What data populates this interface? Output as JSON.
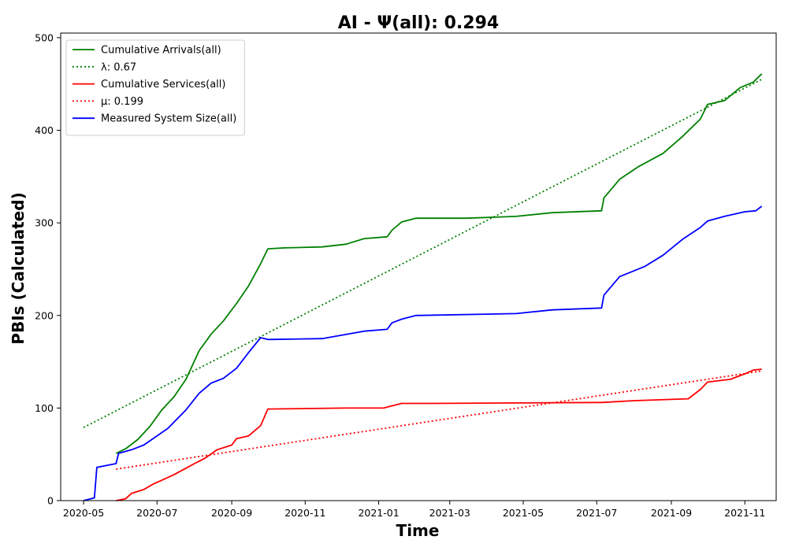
{
  "chart_data": {
    "type": "line",
    "title": "AI -  Ψ(all): 0.294",
    "xlabel": "Time",
    "ylabel": "PBIs (Calculated)",
    "xlim": [
      "2020-04-12",
      "2021-11-27"
    ],
    "ylim": [
      0,
      505
    ],
    "x_ticks": [
      "2020-05",
      "2020-07",
      "2020-09",
      "2020-11",
      "2021-01",
      "2021-03",
      "2021-05",
      "2021-07",
      "2021-09",
      "2021-11"
    ],
    "y_ticks": [
      0,
      100,
      200,
      300,
      400,
      500
    ],
    "grid": false,
    "legend_position": "top-left",
    "series": [
      {
        "name": "Cumulative Arrivals(all)",
        "color": "#008000",
        "style": "solid",
        "points": [
          [
            "2020-05-28",
            51
          ],
          [
            "2020-06-05",
            56
          ],
          [
            "2020-06-15",
            66
          ],
          [
            "2020-06-25",
            80
          ],
          [
            "2020-07-05",
            98
          ],
          [
            "2020-07-15",
            112
          ],
          [
            "2020-07-25",
            131
          ],
          [
            "2020-08-05",
            162
          ],
          [
            "2020-08-15",
            180
          ],
          [
            "2020-08-25",
            194
          ],
          [
            "2020-09-05",
            213
          ],
          [
            "2020-09-15",
            232
          ],
          [
            "2020-09-25",
            256
          ],
          [
            "2020-10-01",
            272
          ],
          [
            "2020-10-15",
            273
          ],
          [
            "2020-11-15",
            274
          ],
          [
            "2020-12-05",
            277
          ],
          [
            "2020-12-20",
            283
          ],
          [
            "2021-01-08",
            285
          ],
          [
            "2021-01-12",
            292
          ],
          [
            "2021-01-20",
            301
          ],
          [
            "2021-02-01",
            305
          ],
          [
            "2021-03-15",
            305
          ],
          [
            "2021-04-25",
            307
          ],
          [
            "2021-05-25",
            311
          ],
          [
            "2021-07-05",
            313
          ],
          [
            "2021-07-07",
            327
          ],
          [
            "2021-07-20",
            347
          ],
          [
            "2021-08-05",
            361
          ],
          [
            "2021-08-25",
            375
          ],
          [
            "2021-09-10",
            393
          ],
          [
            "2021-09-25",
            412
          ],
          [
            "2021-10-01",
            428
          ],
          [
            "2021-10-15",
            432
          ],
          [
            "2021-10-28",
            446
          ],
          [
            "2021-11-08",
            452
          ],
          [
            "2021-11-15",
            461
          ]
        ]
      },
      {
        "name": "λ: 0.67",
        "color": "#008000",
        "style": "dotted",
        "points": [
          [
            "2020-05-01",
            79
          ],
          [
            "2021-11-15",
            455
          ]
        ]
      },
      {
        "name": "Cumulative Services(all)",
        "color": "#ff0000",
        "style": "solid",
        "points": [
          [
            "2020-05-28",
            0
          ],
          [
            "2020-06-05",
            2
          ],
          [
            "2020-06-10",
            8
          ],
          [
            "2020-06-20",
            12
          ],
          [
            "2020-06-28",
            18
          ],
          [
            "2020-07-05",
            22
          ],
          [
            "2020-07-15",
            28
          ],
          [
            "2020-07-25",
            35
          ],
          [
            "2020-08-01",
            40
          ],
          [
            "2020-08-10",
            46
          ],
          [
            "2020-08-20",
            55
          ],
          [
            "2020-09-01",
            60
          ],
          [
            "2020-09-05",
            67
          ],
          [
            "2020-09-15",
            70
          ],
          [
            "2020-09-25",
            81
          ],
          [
            "2020-10-01",
            99
          ],
          [
            "2020-12-05",
            100
          ],
          [
            "2021-01-05",
            100
          ],
          [
            "2021-01-20",
            105
          ],
          [
            "2021-02-15",
            105
          ],
          [
            "2021-07-05",
            106
          ],
          [
            "2021-08-01",
            108
          ],
          [
            "2021-09-15",
            110
          ],
          [
            "2021-09-25",
            120
          ],
          [
            "2021-10-01",
            128
          ],
          [
            "2021-10-20",
            131
          ],
          [
            "2021-11-01",
            137
          ],
          [
            "2021-11-08",
            141
          ],
          [
            "2021-11-15",
            142
          ]
        ]
      },
      {
        "name": "μ: 0.199",
        "color": "#ff0000",
        "style": "dotted",
        "points": [
          [
            "2020-05-28",
            34
          ],
          [
            "2021-11-15",
            140
          ]
        ]
      },
      {
        "name": "Measured System Size(all)",
        "color": "#0000ff",
        "style": "solid",
        "points": [
          [
            "2020-05-01",
            0
          ],
          [
            "2020-05-10",
            3
          ],
          [
            "2020-05-12",
            36
          ],
          [
            "2020-05-28",
            40
          ],
          [
            "2020-05-30",
            51
          ],
          [
            "2020-06-10",
            55
          ],
          [
            "2020-06-20",
            60
          ],
          [
            "2020-07-01",
            70
          ],
          [
            "2020-07-10",
            78
          ],
          [
            "2020-07-25",
            98
          ],
          [
            "2020-08-05",
            116
          ],
          [
            "2020-08-15",
            127
          ],
          [
            "2020-08-25",
            132
          ],
          [
            "2020-09-05",
            143
          ],
          [
            "2020-09-15",
            160
          ],
          [
            "2020-09-25",
            176
          ],
          [
            "2020-10-01",
            174
          ],
          [
            "2020-11-15",
            175
          ],
          [
            "2020-12-20",
            183
          ],
          [
            "2021-01-08",
            185
          ],
          [
            "2021-01-12",
            192
          ],
          [
            "2021-01-20",
            196
          ],
          [
            "2021-02-01",
            200
          ],
          [
            "2021-04-25",
            202
          ],
          [
            "2021-05-25",
            206
          ],
          [
            "2021-07-05",
            208
          ],
          [
            "2021-07-07",
            222
          ],
          [
            "2021-07-20",
            242
          ],
          [
            "2021-08-10",
            253
          ],
          [
            "2021-08-25",
            265
          ],
          [
            "2021-09-10",
            282
          ],
          [
            "2021-09-25",
            295
          ],
          [
            "2021-10-01",
            302
          ],
          [
            "2021-10-15",
            307
          ],
          [
            "2021-11-01",
            312
          ],
          [
            "2021-11-10",
            313
          ],
          [
            "2021-11-15",
            318
          ]
        ]
      }
    ]
  }
}
